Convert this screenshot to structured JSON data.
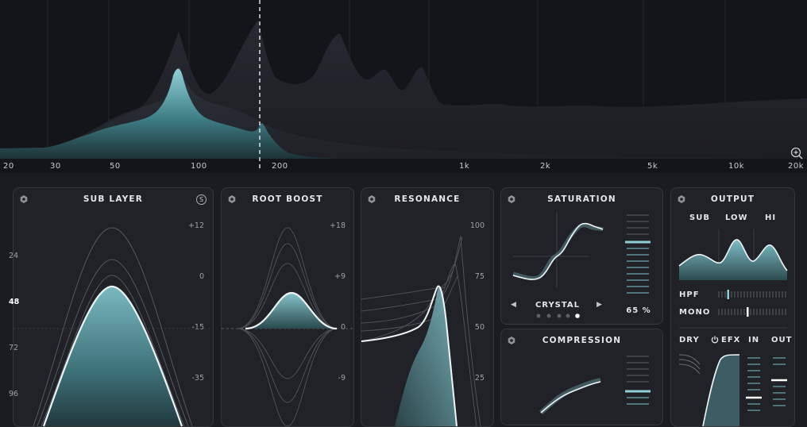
{
  "analyzer": {
    "freq_labels": [
      {
        "text": "20"
      },
      {
        "text": "30"
      },
      {
        "text": "50"
      },
      {
        "text": "100"
      },
      {
        "text": "200"
      },
      {
        "text": "1k"
      },
      {
        "text": "2k"
      },
      {
        "text": "5k"
      },
      {
        "text": "10k"
      },
      {
        "text": "20k"
      }
    ],
    "zoom_icon": "zoom-in-icon"
  },
  "panels": {
    "sub_layer": {
      "title": "SUB LAYER",
      "solo_label": "S",
      "note_labels": [
        "24",
        "48",
        "72",
        "96"
      ],
      "db_labels": [
        "+12",
        "0",
        "-15",
        "-35"
      ]
    },
    "root_boost": {
      "title": "ROOT BOOST",
      "db_labels": [
        "+18",
        "+9",
        "0",
        "-9"
      ]
    },
    "resonance": {
      "title": "RESONANCE",
      "scale": [
        "100",
        "75",
        "50",
        "25"
      ]
    },
    "saturation": {
      "title": "SATURATION",
      "mode": "CRYSTAL",
      "amount": "65 %",
      "prev_icon": "triangle-left-icon",
      "next_icon": "triangle-right-icon"
    },
    "compression": {
      "title": "COMPRESSION"
    },
    "output": {
      "title": "OUTPUT",
      "bands": [
        "SUB",
        "LOW",
        "HI"
      ],
      "hpf_label": "HPF",
      "mono_label": "MONO",
      "dry_label": "DRY",
      "efx_label": "EFX",
      "in_label": "IN",
      "out_label": "OUT",
      "power_icon": "power-icon"
    }
  },
  "colors": {
    "accent": "#7fc4cc",
    "bg": "#1b1c20",
    "panel": "#212227"
  }
}
